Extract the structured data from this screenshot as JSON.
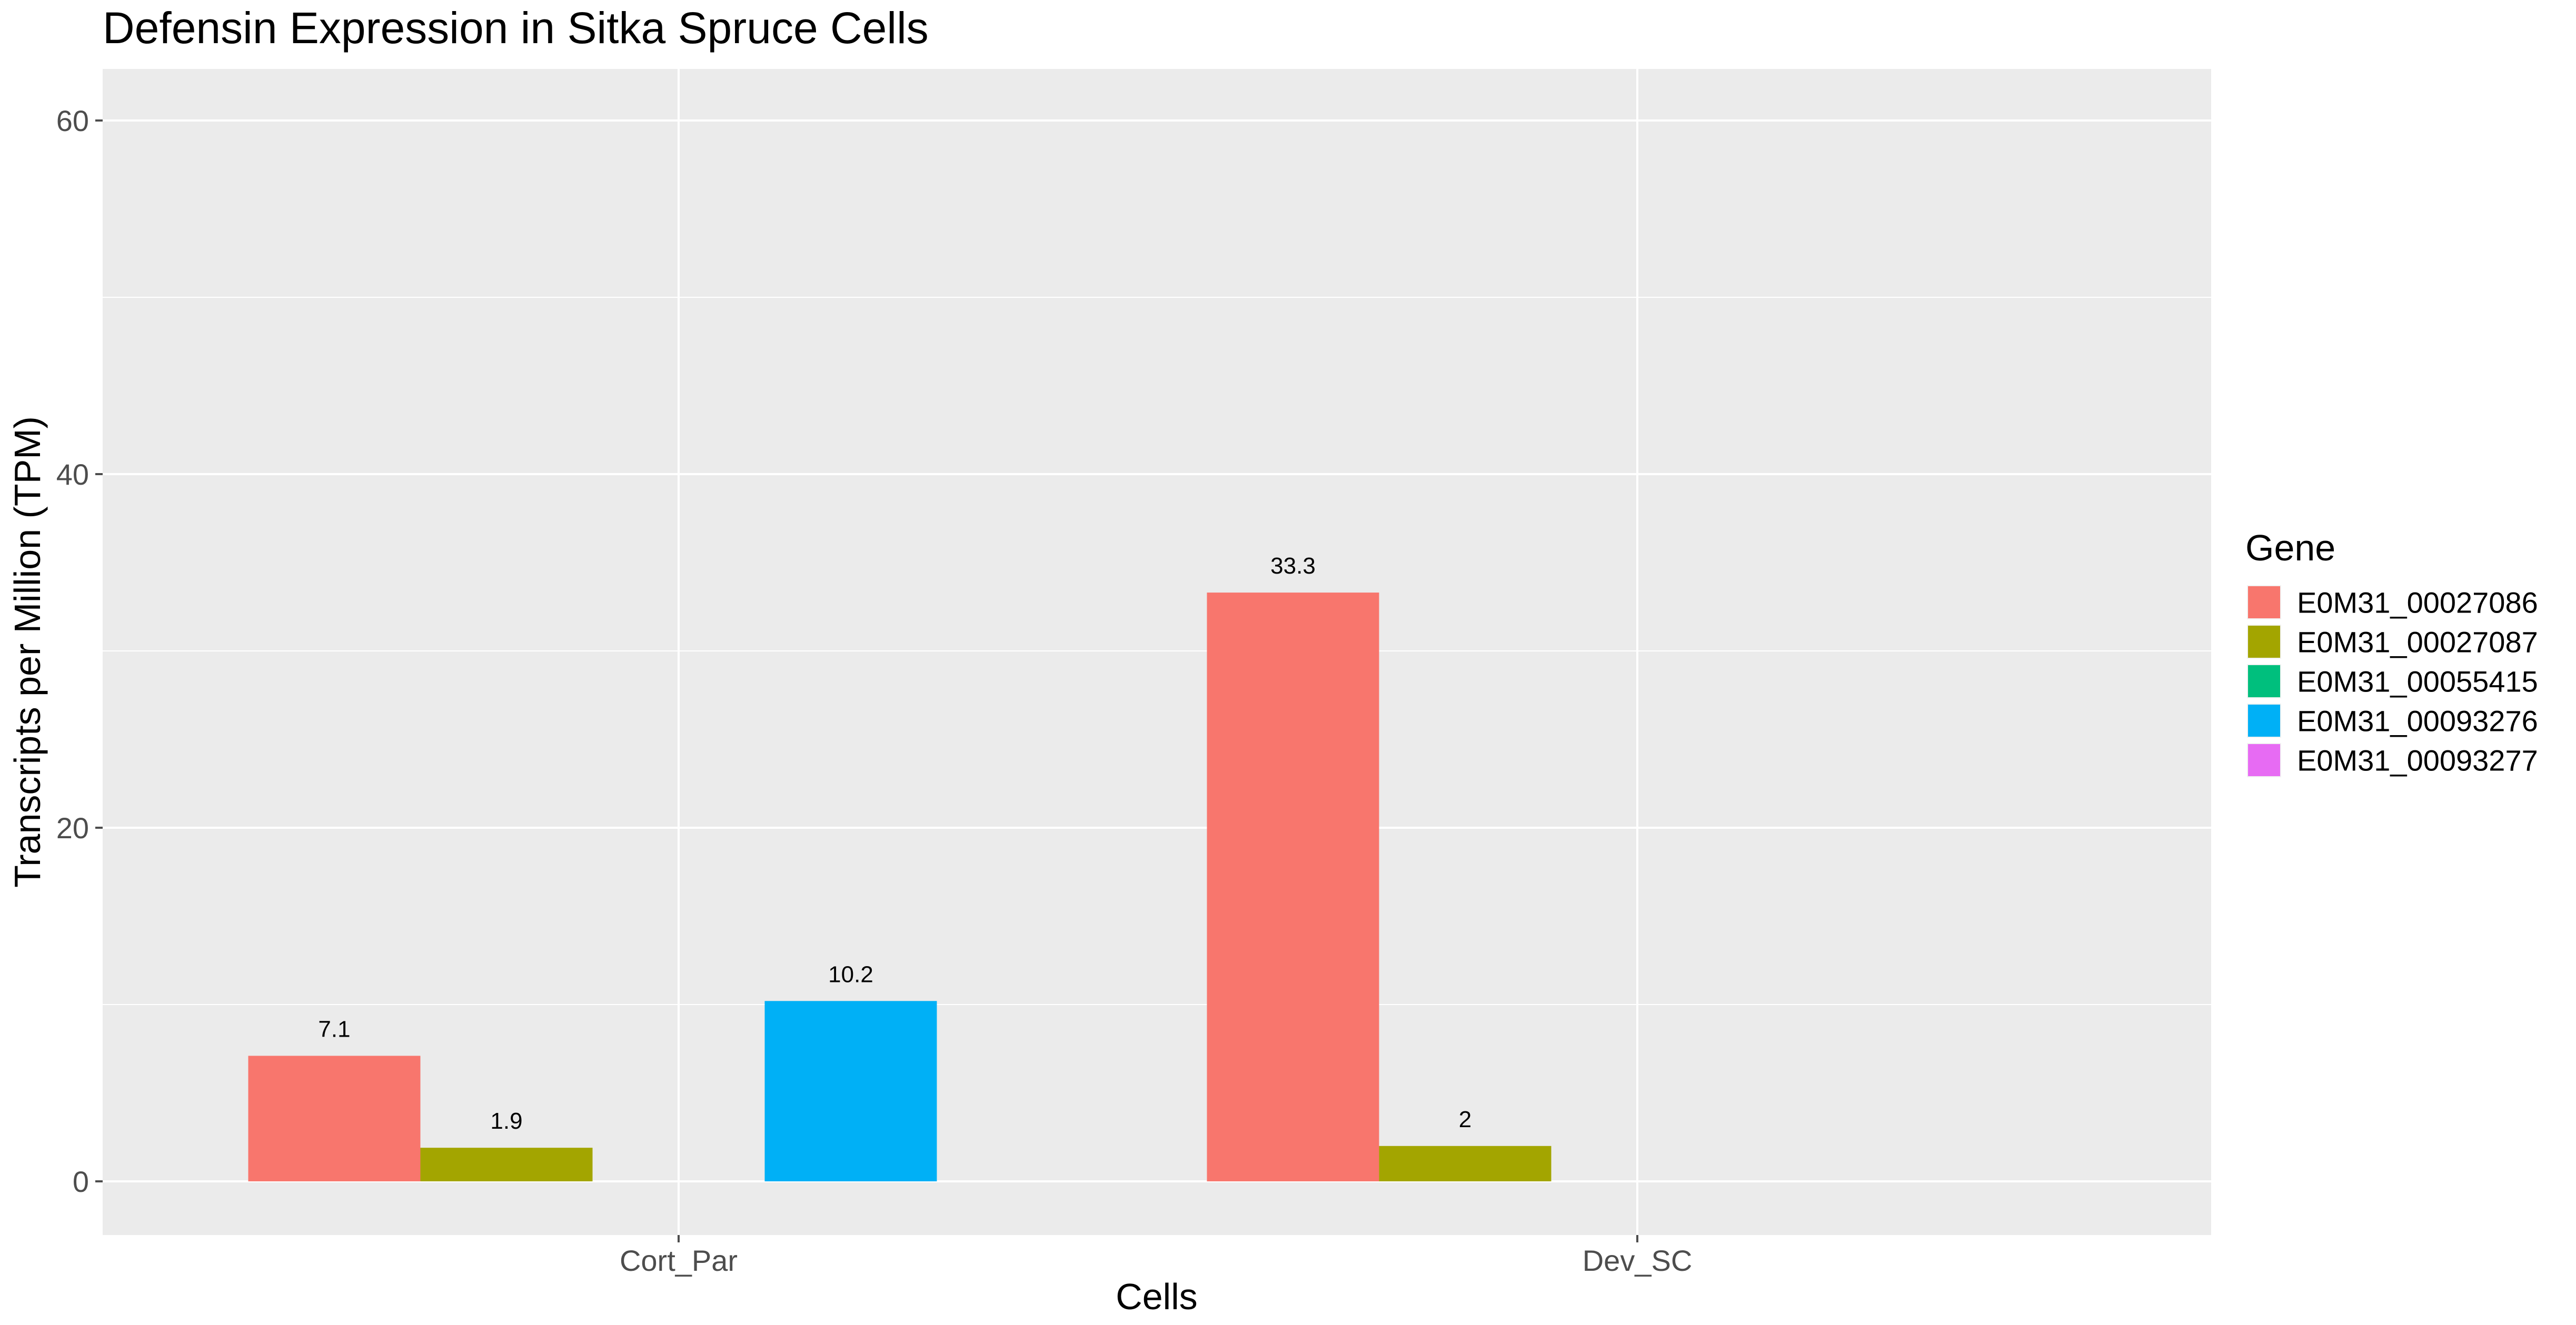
{
  "chart_data": {
    "type": "bar",
    "title": "Defensin Expression in Sitka Spruce Cells",
    "xlabel": "Cells",
    "ylabel": "Transcripts per Million (TPM)",
    "categories": [
      "Cort_Par",
      "Dev_SC"
    ],
    "ylim": [
      -3,
      63
    ],
    "yticks": [
      0,
      20,
      40,
      60
    ],
    "grid": true,
    "legend": {
      "title": "Gene",
      "position": "right"
    },
    "series": [
      {
        "name": "E0M31_00027086",
        "color": "#F8766D",
        "values": [
          7.1,
          33.3
        ],
        "labels": [
          "7.1",
          "33.3"
        ]
      },
      {
        "name": "E0M31_00027087",
        "color": "#A3A500",
        "values": [
          1.9,
          2
        ],
        "labels": [
          "1.9",
          "2"
        ]
      },
      {
        "name": "E0M31_00055415",
        "color": "#00BF7D",
        "values": [
          0,
          0
        ],
        "labels": [
          "",
          ""
        ]
      },
      {
        "name": "E0M31_00093276",
        "color": "#00B0F6",
        "values": [
          10.2,
          0
        ],
        "labels": [
          "10.2",
          ""
        ]
      },
      {
        "name": "E0M31_00093277",
        "color": "#E76BF3",
        "values": [
          0,
          0
        ],
        "labels": [
          "",
          ""
        ]
      }
    ],
    "colors": {
      "panel": "#EBEBEB",
      "grid": "#FFFFFF",
      "tick": "#4D4D4D"
    }
  }
}
